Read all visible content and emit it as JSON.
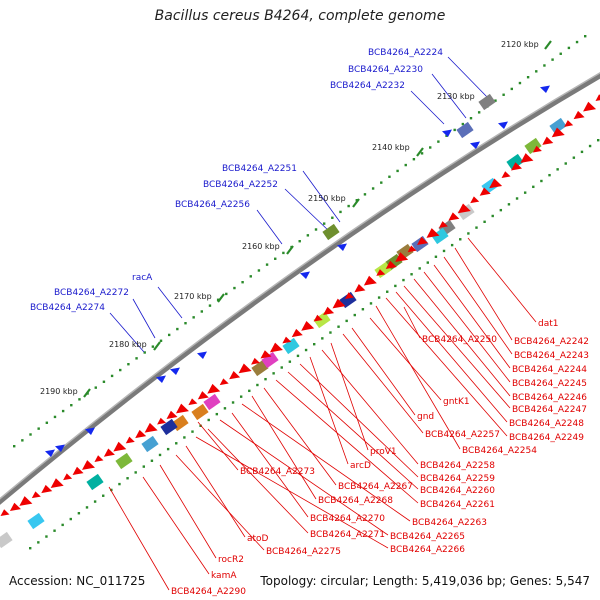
{
  "title": "Bacillus cereus B4264, complete genome",
  "footer": {
    "accession": "Accession: NC_011725",
    "summary": "Topology: circular; Length: 5,419,036 bp; Genes: 5,547"
  },
  "colors": {
    "forward_label": "#1a1acc",
    "reverse_label": "#e00000",
    "forward_gene": "#1428ee",
    "reverse_gene": "#ee0000",
    "backbone": "#7a7a7a",
    "scale_dot": "#2a8a2a"
  },
  "ticks": [
    "2120 kbp",
    "2130 kbp",
    "2140 kbp",
    "2150 kbp",
    "2160 kbp",
    "2170 kbp",
    "2180 kbp",
    "2190 kbp"
  ],
  "forward_labels": [
    "BCB4264_A2224",
    "BCB4264_A2230",
    "BCB4264_A2232",
    "BCB4264_A2251",
    "BCB4264_A2252",
    "BCB4264_A2256",
    "racA",
    "BCB4264_A2272",
    "BCB4264_A2274"
  ],
  "reverse_labels": [
    "dat1",
    "BCB4264_A2242",
    "BCB4264_A2243",
    "BCB4264_A2244",
    "BCB4264_A2245",
    "BCB4264_A2246",
    "BCB4264_A2247",
    "BCB4264_A2248",
    "BCB4264_A2249",
    "BCB4264_A2250",
    "BCB4264_A2254",
    "gntK1",
    "gnd",
    "BCB4264_A2257",
    "proV1",
    "BCB4264_A2258",
    "arcD",
    "BCB4264_A2259",
    "BCB4264_A2260",
    "BCB4264_A2273",
    "BCB4264_A2261",
    "BCB4264_A2267",
    "BCB4264_A2268",
    "BCB4264_A2263",
    "BCB4264_A2270",
    "BCB4264_A2265",
    "BCB4264_A2271",
    "atoD",
    "BCB4264_A2266",
    "BCB4264_A2275",
    "rocR2",
    "kamA",
    "BCB4264_A2290"
  ]
}
